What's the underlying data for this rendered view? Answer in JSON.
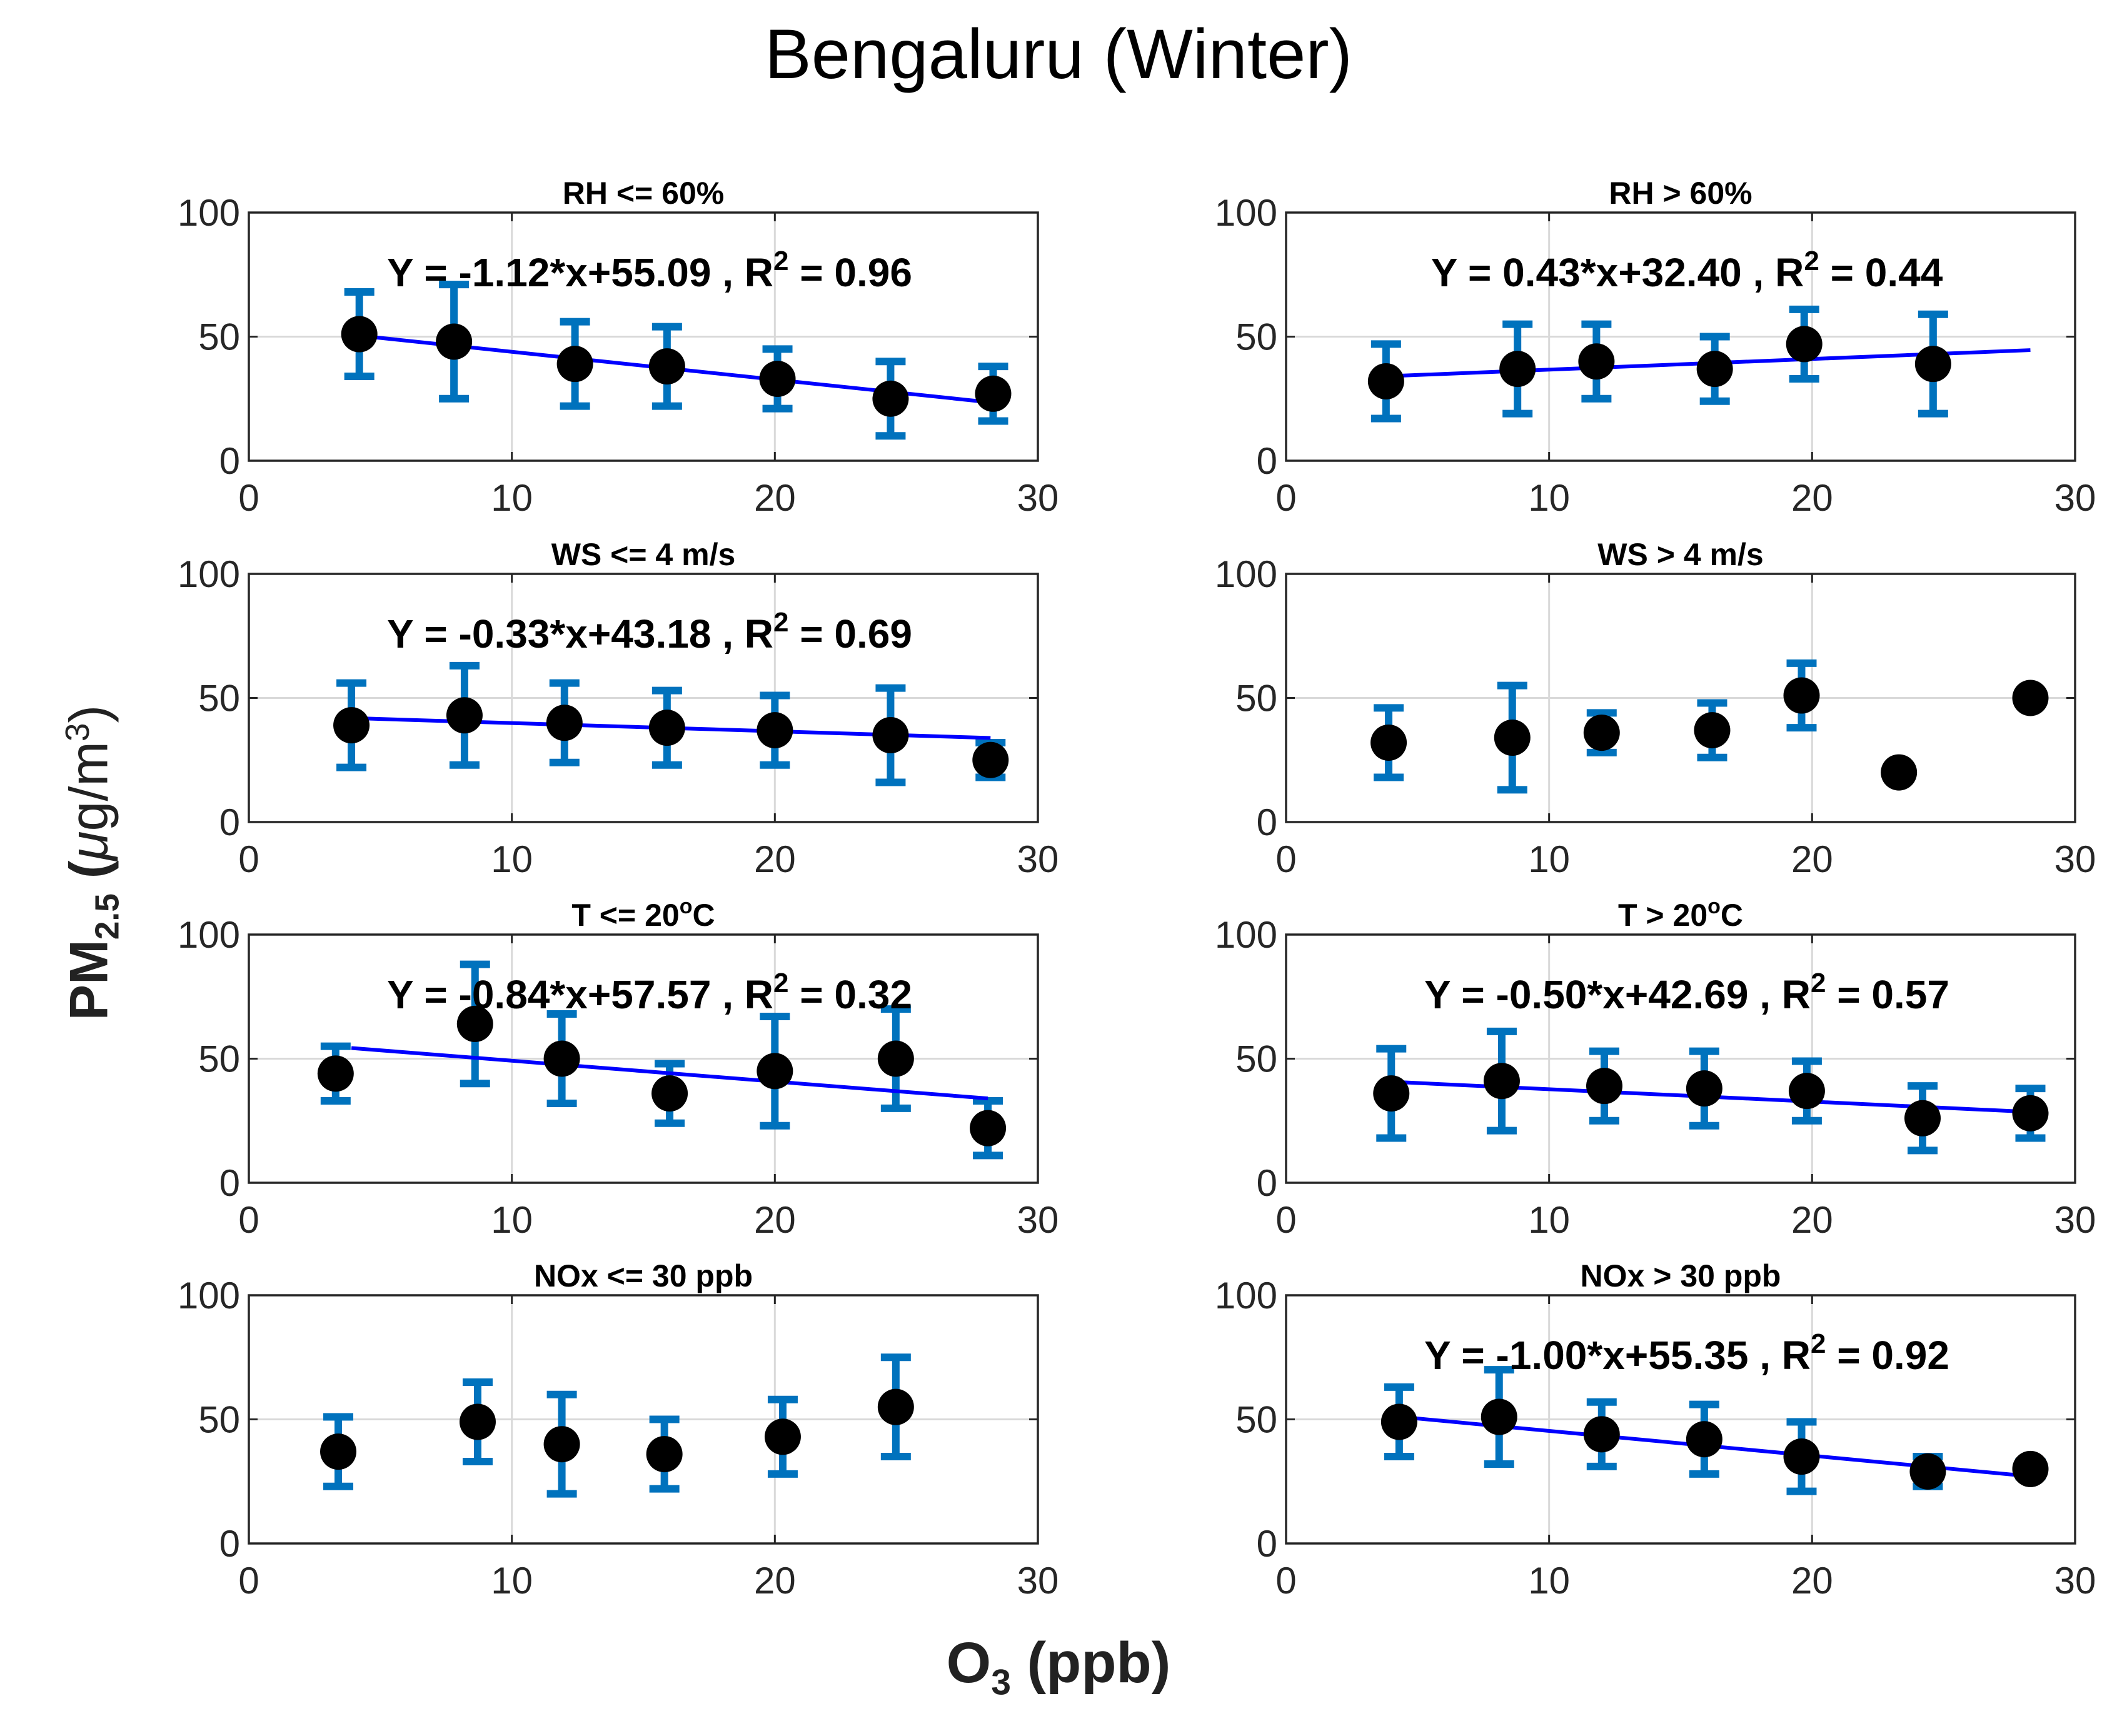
{
  "figure": {
    "title": "Bengaluru (Winter)",
    "ylabel_main": "PM",
    "ylabel_sub": "2.5",
    "ylabel_unit_prefix": "(",
    "ylabel_mu": "μ",
    "ylabel_unit": "g/m",
    "ylabel_unit_sup": "3",
    "ylabel_unit_suffix": ")",
    "xlabel_main": "O",
    "xlabel_sub": "3",
    "xlabel_unit": "(ppb)"
  },
  "colors": {
    "errorbar": "#0072BD",
    "fit_line": "#0000FF",
    "marker": "#000000",
    "grid": "#D9D9D9",
    "axis": "#262626"
  },
  "chart_data": [
    {
      "type": "scatter",
      "title": "RH <= 60%",
      "xlim": [
        0,
        30
      ],
      "ylim": [
        0,
        100
      ],
      "xticks": [
        0,
        10,
        20,
        30
      ],
      "yticks": [
        0,
        50,
        100
      ],
      "x": [
        4.2,
        7.8,
        12.4,
        15.9,
        20.1,
        24.4,
        28.3
      ],
      "y": [
        51,
        48,
        39,
        38,
        33,
        25,
        27
      ],
      "err": [
        17,
        23,
        17,
        16,
        12,
        15,
        11
      ],
      "fit": {
        "slope": -1.12,
        "intercept": 55.09,
        "x_range": [
          4.4,
          28.5
        ]
      },
      "equation": "Y = -1.12*x+55.09 , R",
      "r2_label": "2",
      "r2_value": " = 0.96"
    },
    {
      "type": "scatter",
      "title": "RH > 60%",
      "xlim": [
        0,
        30
      ],
      "ylim": [
        0,
        100
      ],
      "xticks": [
        0,
        10,
        20,
        30
      ],
      "yticks": [
        0,
        50,
        100
      ],
      "x": [
        3.8,
        8.8,
        11.8,
        16.3,
        19.7,
        24.6
      ],
      "y": [
        32,
        37,
        40,
        37,
        47,
        39
      ],
      "err": [
        15,
        18,
        15,
        13,
        14,
        20
      ],
      "fit": {
        "slope": 0.43,
        "intercept": 32.4,
        "x_range": [
          4.1,
          28.3
        ]
      },
      "equation": "Y = 0.43*x+32.40 , R",
      "r2_label": "2",
      "r2_value": " = 0.44"
    },
    {
      "type": "scatter",
      "title": "WS <= 4 m/s",
      "xlim": [
        0,
        30
      ],
      "ylim": [
        0,
        100
      ],
      "xticks": [
        0,
        10,
        20,
        30
      ],
      "yticks": [
        0,
        50,
        100
      ],
      "x": [
        3.9,
        8.2,
        12.0,
        15.9,
        20.0,
        24.4,
        28.2
      ],
      "y": [
        39,
        43,
        40,
        38,
        37,
        35,
        25
      ],
      "err": [
        17,
        20,
        16,
        15,
        14,
        19,
        7
      ],
      "fit": {
        "slope": -0.33,
        "intercept": 43.18,
        "x_range": [
          3.9,
          28.2
        ]
      },
      "equation": "Y = -0.33*x+43.18 , R",
      "r2_label": "2",
      "r2_value": " = 0.69"
    },
    {
      "type": "scatter",
      "title": "WS > 4 m/s",
      "xlim": [
        0,
        30
      ],
      "ylim": [
        0,
        100
      ],
      "xticks": [
        0,
        10,
        20,
        30
      ],
      "yticks": [
        0,
        50,
        100
      ],
      "x": [
        3.9,
        8.6,
        12.0,
        16.2,
        19.6,
        23.3,
        28.3
      ],
      "y": [
        32,
        34,
        36,
        37,
        51,
        20,
        50
      ],
      "err": [
        14,
        21,
        8,
        11,
        13,
        1,
        1
      ],
      "fit": null,
      "equation": "",
      "r2_label": "",
      "r2_value": ""
    },
    {
      "type": "scatter",
      "title": "T <= 20",
      "title_sup": "o",
      "title_suffix": "C",
      "xlim": [
        0,
        30
      ],
      "ylim": [
        0,
        100
      ],
      "xticks": [
        0,
        10,
        20,
        30
      ],
      "yticks": [
        0,
        50,
        100
      ],
      "x": [
        3.3,
        8.6,
        11.9,
        16.0,
        20.0,
        24.6,
        28.1
      ],
      "y": [
        44,
        64,
        50,
        36,
        45,
        50,
        22
      ],
      "err": [
        11,
        24,
        18,
        12,
        22,
        20,
        11
      ],
      "fit": {
        "slope": -0.84,
        "intercept": 57.57,
        "x_range": [
          3.9,
          28.1
        ]
      },
      "equation": "Y = -0.84*x+57.57 , R",
      "r2_label": "2",
      "r2_value": " = 0.32"
    },
    {
      "type": "scatter",
      "title": "T > 20",
      "title_sup": "o",
      "title_suffix": "C",
      "xlim": [
        0,
        30
      ],
      "ylim": [
        0,
        100
      ],
      "xticks": [
        0,
        10,
        20,
        30
      ],
      "yticks": [
        0,
        50,
        100
      ],
      "x": [
        4.0,
        8.2,
        12.1,
        15.9,
        19.8,
        24.2,
        28.3
      ],
      "y": [
        36,
        41,
        39,
        38,
        37,
        26,
        28
      ],
      "err": [
        18,
        20,
        14,
        15,
        12,
        13,
        10
      ],
      "fit": {
        "slope": -0.5,
        "intercept": 42.69,
        "x_range": [
          4.4,
          28.3
        ]
      },
      "equation": "Y = -0.50*x+42.69 , R",
      "r2_label": "2",
      "r2_value": " = 0.57"
    },
    {
      "type": "scatter",
      "title": "NOx <= 30 ppb",
      "xlim": [
        0,
        30
      ],
      "ylim": [
        0,
        100
      ],
      "xticks": [
        0,
        10,
        20,
        30
      ],
      "yticks": [
        0,
        50,
        100
      ],
      "x": [
        3.4,
        8.7,
        11.9,
        15.8,
        20.3,
        24.6
      ],
      "y": [
        37,
        49,
        40,
        36,
        43,
        55
      ],
      "err": [
        14,
        16,
        20,
        14,
        15,
        20
      ],
      "fit": null,
      "equation": "",
      "r2_label": "",
      "r2_value": ""
    },
    {
      "type": "scatter",
      "title": "NOx > 30 ppb",
      "xlim": [
        0,
        30
      ],
      "ylim": [
        0,
        100
      ],
      "xticks": [
        0,
        10,
        20,
        30
      ],
      "yticks": [
        0,
        50,
        100
      ],
      "x": [
        4.3,
        8.1,
        12.0,
        15.9,
        19.6,
        24.4,
        28.3
      ],
      "y": [
        49,
        51,
        44,
        42,
        35,
        29,
        30
      ],
      "err": [
        14,
        19,
        13,
        14,
        14,
        6,
        3
      ],
      "fit": {
        "slope": -1.0,
        "intercept": 55.35,
        "x_range": [
          4.6,
          28.3
        ]
      },
      "equation": "Y = -1.00*x+55.35 , R",
      "r2_label": "2",
      "r2_value": " = 0.92"
    }
  ]
}
